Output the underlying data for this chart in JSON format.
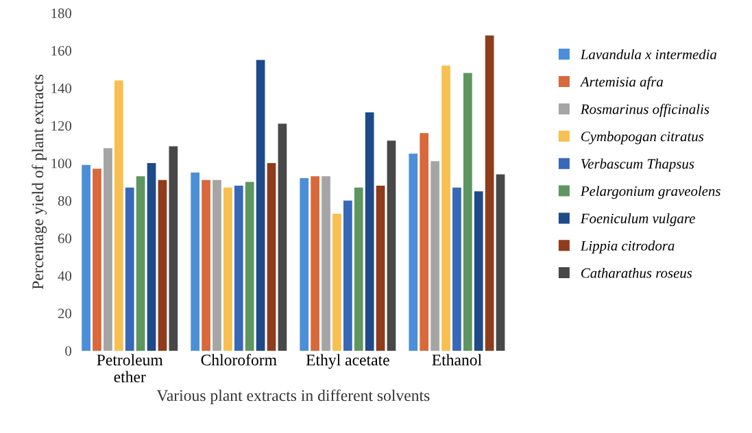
{
  "chart_data": {
    "type": "bar",
    "xlabel": "Various plant extracts in different solvents",
    "ylabel": "Percentage yield of plant extracts",
    "categories": [
      "Petroleum\nether",
      "Chloroform",
      "Ethyl acetate",
      "Ethanol"
    ],
    "ylim": [
      0,
      180
    ],
    "yticks": [
      0,
      20,
      40,
      60,
      80,
      100,
      120,
      140,
      160,
      180
    ],
    "grid": false,
    "legend": "right",
    "series": [
      {
        "name": "Lavandula x intermedia",
        "color": "#4a8fd8",
        "values": [
          99,
          95,
          92,
          105
        ]
      },
      {
        "name": "Artemisia afra",
        "color": "#d9683a",
        "values": [
          97,
          91,
          93,
          116
        ]
      },
      {
        "name": "Rosmarinus officinalis",
        "color": "#a5a5a5",
        "values": [
          108,
          91,
          93,
          101
        ]
      },
      {
        "name": "Cymbopogan citratus",
        "color": "#f8c050",
        "values": [
          144,
          87,
          73,
          152
        ]
      },
      {
        "name": "Verbascum Thapsus",
        "color": "#3868b8",
        "values": [
          87,
          88,
          80,
          87
        ]
      },
      {
        "name": "Pelargonium graveolens",
        "color": "#5e9660",
        "values": [
          93,
          90,
          87,
          148
        ]
      },
      {
        "name": "Foeniculum vulgare",
        "color": "#1f4a8a",
        "values": [
          100,
          155,
          127,
          85
        ]
      },
      {
        "name": "Lippia citrodora",
        "color": "#8e3c1c",
        "values": [
          91,
          100,
          88,
          168
        ]
      },
      {
        "name": "Catharathus roseus",
        "color": "#484848",
        "values": [
          109,
          121,
          112,
          94
        ]
      }
    ]
  }
}
